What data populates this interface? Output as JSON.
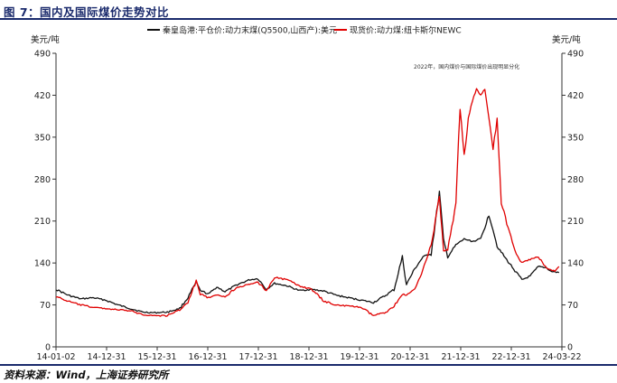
{
  "figure_title": "图 7：国内及国际煤价走势对比",
  "source_note": "资料来源：Wind，上海证券研究所",
  "chart_data": {
    "type": "line",
    "title": "",
    "ylabel_left": "美元/吨",
    "ylabel_right": "美元/吨",
    "ylim": [
      0,
      490
    ],
    "yticks": [
      0,
      70,
      140,
      210,
      280,
      350,
      420,
      490
    ],
    "x_tick_labels": [
      "14-01-02",
      "14-12-31",
      "15-12-31",
      "16-12-31",
      "17-12-31",
      "18-12-31",
      "19-12-31",
      "20-12-31",
      "21-12-31",
      "22-12-31",
      "24-03-22"
    ],
    "annotation": "2022年，国内煤价与国际煤价出现明显分化",
    "colors": {
      "domestic": "#111111",
      "newc": "#e00000"
    },
    "series": [
      {
        "name": "秦皇岛港:平仓价:动力末煤(Q5500,山西产):美元",
        "color": "#111111",
        "points": [
          [
            "2014-01",
            96
          ],
          [
            "2014-04",
            86
          ],
          [
            "2014-07",
            80
          ],
          [
            "2014-10",
            82
          ],
          [
            "2015-01",
            78
          ],
          [
            "2015-04",
            70
          ],
          [
            "2015-07",
            64
          ],
          [
            "2015-10",
            58
          ],
          [
            "2016-01",
            57
          ],
          [
            "2016-04",
            58
          ],
          [
            "2016-07",
            64
          ],
          [
            "2016-09",
            82
          ],
          [
            "2016-11",
            108
          ],
          [
            "2016-12",
            94
          ],
          [
            "2017-02",
            88
          ],
          [
            "2017-04",
            100
          ],
          [
            "2017-06",
            92
          ],
          [
            "2017-09",
            104
          ],
          [
            "2017-12",
            112
          ],
          [
            "2018-02",
            114
          ],
          [
            "2018-04",
            96
          ],
          [
            "2018-06",
            106
          ],
          [
            "2018-09",
            102
          ],
          [
            "2018-12",
            94
          ],
          [
            "2019-03",
            96
          ],
          [
            "2019-06",
            93
          ],
          [
            "2019-09",
            86
          ],
          [
            "2019-12",
            82
          ],
          [
            "2020-03",
            78
          ],
          [
            "2020-06",
            74
          ],
          [
            "2020-09",
            86
          ],
          [
            "2020-11",
            96
          ],
          [
            "2021-01",
            150
          ],
          [
            "2021-02",
            104
          ],
          [
            "2021-04",
            130
          ],
          [
            "2021-06",
            150
          ],
          [
            "2021-08",
            156
          ],
          [
            "2021-10",
            258
          ],
          [
            "2021-11",
            178
          ],
          [
            "2021-12",
            150
          ],
          [
            "2022-02",
            170
          ],
          [
            "2022-04",
            180
          ],
          [
            "2022-06",
            176
          ],
          [
            "2022-08",
            180
          ],
          [
            "2022-10",
            220
          ],
          [
            "2022-11",
            196
          ],
          [
            "2022-12",
            168
          ],
          [
            "2023-02",
            148
          ],
          [
            "2023-04",
            130
          ],
          [
            "2023-06",
            112
          ],
          [
            "2023-08",
            118
          ],
          [
            "2023-10",
            134
          ],
          [
            "2023-12",
            132
          ],
          [
            "2024-01",
            126
          ],
          [
            "2024-03",
            124
          ]
        ]
      },
      {
        "name": "现货价:动力煤:纽卡斯尔NEWC",
        "color": "#e00000",
        "points": [
          [
            "2014-01",
            84
          ],
          [
            "2014-04",
            76
          ],
          [
            "2014-07",
            70
          ],
          [
            "2014-10",
            66
          ],
          [
            "2015-01",
            64
          ],
          [
            "2015-04",
            62
          ],
          [
            "2015-07",
            60
          ],
          [
            "2015-10",
            54
          ],
          [
            "2016-01",
            52
          ],
          [
            "2016-04",
            52
          ],
          [
            "2016-07",
            62
          ],
          [
            "2016-09",
            74
          ],
          [
            "2016-11",
            110
          ],
          [
            "2016-12",
            88
          ],
          [
            "2017-02",
            82
          ],
          [
            "2017-04",
            86
          ],
          [
            "2017-06",
            84
          ],
          [
            "2017-09",
            100
          ],
          [
            "2017-12",
            104
          ],
          [
            "2018-02",
            108
          ],
          [
            "2018-04",
            94
          ],
          [
            "2018-06",
            116
          ],
          [
            "2018-09",
            112
          ],
          [
            "2018-12",
            102
          ],
          [
            "2019-03",
            96
          ],
          [
            "2019-06",
            76
          ],
          [
            "2019-09",
            70
          ],
          [
            "2019-12",
            68
          ],
          [
            "2020-03",
            66
          ],
          [
            "2020-06",
            52
          ],
          [
            "2020-09",
            58
          ],
          [
            "2020-11",
            68
          ],
          [
            "2021-01",
            88
          ],
          [
            "2021-02",
            86
          ],
          [
            "2021-04",
            96
          ],
          [
            "2021-06",
            130
          ],
          [
            "2021-08",
            170
          ],
          [
            "2021-10",
            250
          ],
          [
            "2021-11",
            160
          ],
          [
            "2021-12",
            162
          ],
          [
            "2022-02",
            240
          ],
          [
            "2022-03",
            400
          ],
          [
            "2022-04",
            320
          ],
          [
            "2022-05",
            380
          ],
          [
            "2022-06",
            410
          ],
          [
            "2022-07",
            430
          ],
          [
            "2022-08",
            420
          ],
          [
            "2022-09",
            430
          ],
          [
            "2022-10",
            380
          ],
          [
            "2022-11",
            330
          ],
          [
            "2022-12",
            380
          ],
          [
            "2023-01",
            240
          ],
          [
            "2023-03",
            190
          ],
          [
            "2023-05",
            150
          ],
          [
            "2023-06",
            140
          ],
          [
            "2023-08",
            146
          ],
          [
            "2023-10",
            150
          ],
          [
            "2023-12",
            132
          ],
          [
            "2024-02",
            126
          ],
          [
            "2024-03",
            134
          ]
        ]
      }
    ]
  }
}
